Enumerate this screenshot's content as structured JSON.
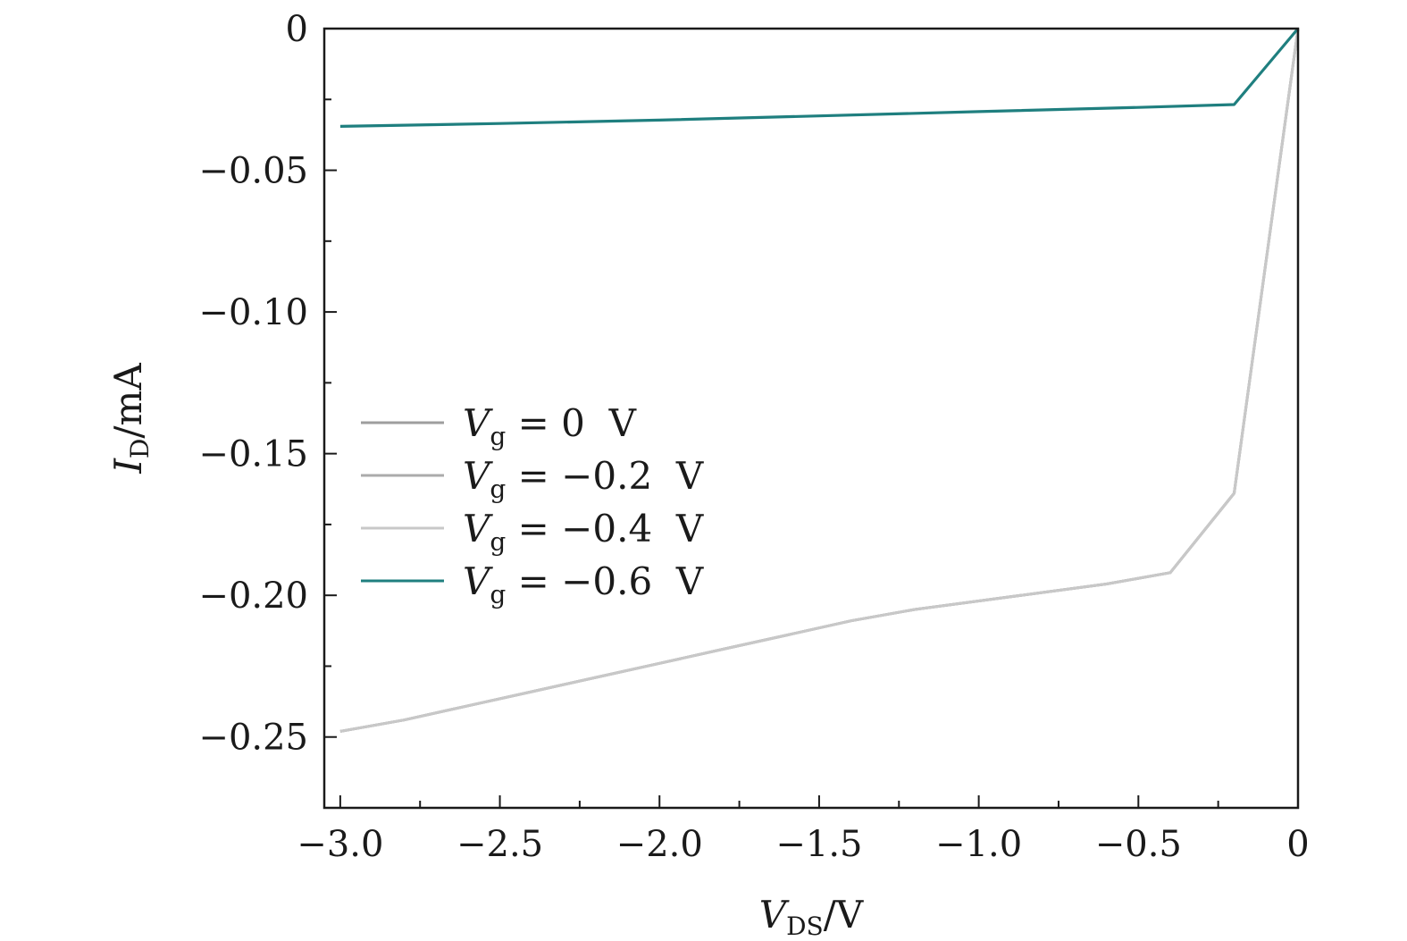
{
  "chart_data": {
    "type": "line",
    "xlabel": {
      "symbol": "V",
      "sub": "DS",
      "unit": "/V"
    },
    "ylabel": {
      "symbol": "I",
      "sub": "D",
      "unit": "/mA"
    },
    "xlim": [
      -3.05,
      0
    ],
    "ylim": [
      -0.275,
      0
    ],
    "x_major_ticks": [
      -3.0,
      -2.5,
      -2.0,
      -1.5,
      -1.0,
      -0.5,
      0
    ],
    "x_tick_labels": [
      "−3.0",
      "−2.5",
      "−2.0",
      "−1.5",
      "−1.0",
      "−0.5",
      "0"
    ],
    "x_minor_ticks": [
      -2.75,
      -2.25,
      -1.75,
      -1.25,
      -0.75,
      -0.25
    ],
    "y_major_ticks": [
      0,
      -0.05,
      -0.1,
      -0.15,
      -0.2,
      -0.25
    ],
    "y_tick_labels": [
      "0",
      "−0.05",
      "−0.10",
      "−0.15",
      "−0.20",
      "−0.25"
    ],
    "y_minor_ticks": [
      -0.025,
      -0.075,
      -0.125,
      -0.175,
      -0.225
    ],
    "grid": false,
    "legend_position": "center-left",
    "series": [
      {
        "name": "Vg = 0 V",
        "label_sym": "V",
        "label_sub": "g",
        "label_rest": " = 0  V",
        "color": "#9e9e9e",
        "x": [
          -3.0,
          -2.8,
          -2.6,
          -2.4,
          -2.2,
          -2.0,
          -1.8,
          -1.6,
          -1.4,
          -1.2,
          -1.0,
          -0.8,
          -0.6,
          -0.4,
          -0.2,
          0
        ],
        "y": [
          -0.248,
          -0.244,
          -0.239,
          -0.234,
          -0.229,
          -0.224,
          -0.219,
          -0.214,
          -0.209,
          -0.205,
          -0.202,
          -0.199,
          -0.196,
          -0.192,
          -0.164,
          0
        ]
      },
      {
        "name": "Vg = −0.2 V",
        "label_sym": "V",
        "label_sub": "g",
        "label_rest": " = −0.2  V",
        "color": "#ababab",
        "x": [
          -3.0,
          -2.8,
          -2.6,
          -2.4,
          -2.2,
          -2.0,
          -1.8,
          -1.6,
          -1.4,
          -1.2,
          -1.0,
          -0.8,
          -0.6,
          -0.4,
          -0.2,
          0
        ],
        "y": [
          -0.248,
          -0.244,
          -0.239,
          -0.234,
          -0.229,
          -0.224,
          -0.219,
          -0.214,
          -0.209,
          -0.205,
          -0.202,
          -0.199,
          -0.196,
          -0.192,
          -0.164,
          0
        ]
      },
      {
        "name": "Vg = −0.4 V",
        "label_sym": "V",
        "label_sub": "g",
        "label_rest": " = −0.4  V",
        "color": "#c8c8c8",
        "x": [
          -3.0,
          -2.8,
          -2.6,
          -2.4,
          -2.2,
          -2.0,
          -1.8,
          -1.6,
          -1.4,
          -1.2,
          -1.0,
          -0.8,
          -0.6,
          -0.4,
          -0.2,
          0
        ],
        "y": [
          -0.248,
          -0.244,
          -0.239,
          -0.234,
          -0.229,
          -0.224,
          -0.219,
          -0.214,
          -0.209,
          -0.205,
          -0.202,
          -0.199,
          -0.196,
          -0.192,
          -0.164,
          0
        ]
      },
      {
        "name": "Vg = −0.6 V",
        "label_sym": "V",
        "label_sub": "g",
        "label_rest": " = −0.6  V",
        "color": "#1f7f7f",
        "x": [
          -3.0,
          -2.5,
          -2.0,
          -1.5,
          -1.0,
          -0.5,
          -0.2,
          0
        ],
        "y": [
          -0.0345,
          -0.0335,
          -0.0323,
          -0.0308,
          -0.0293,
          -0.0278,
          -0.0268,
          0
        ]
      }
    ]
  }
}
